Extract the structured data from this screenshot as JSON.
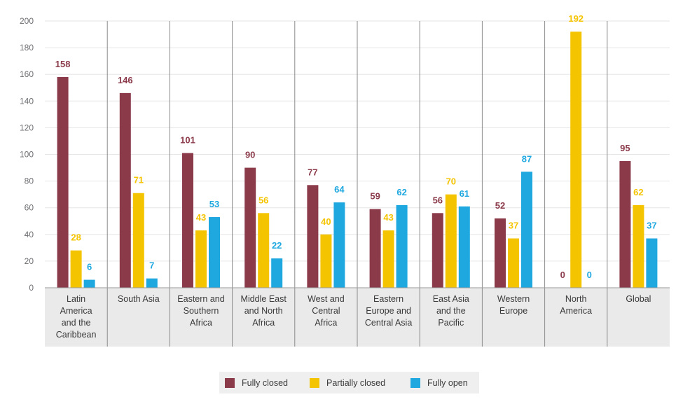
{
  "chart_data": {
    "type": "bar",
    "title": "",
    "xlabel": "",
    "ylabel": "",
    "ylim": [
      0,
      200
    ],
    "yticks": [
      0,
      20,
      40,
      60,
      80,
      100,
      120,
      140,
      160,
      180,
      200
    ],
    "grid": true,
    "legend_position": "bottom-center",
    "categories": [
      [
        "Latin",
        "America",
        "and the",
        "Caribbean"
      ],
      [
        "South Asia"
      ],
      [
        "Eastern and",
        "Southern",
        "Africa"
      ],
      [
        "Middle East",
        "and North",
        "Africa"
      ],
      [
        "West and",
        "Central",
        "Africa"
      ],
      [
        "Eastern",
        "Europe and",
        "Central Asia"
      ],
      [
        "East Asia",
        "and the",
        "Pacific"
      ],
      [
        "Western",
        "Europe"
      ],
      [
        "North",
        "America"
      ],
      [
        "Global"
      ]
    ],
    "series": [
      {
        "name": "Fully closed",
        "color": "#8b3a4a",
        "values": [
          158,
          146,
          101,
          90,
          77,
          59,
          56,
          52,
          0,
          95
        ]
      },
      {
        "name": "Partially closed",
        "color": "#f5c400",
        "values": [
          28,
          71,
          43,
          56,
          40,
          43,
          70,
          37,
          192,
          62
        ]
      },
      {
        "name": "Fully open",
        "color": "#1fa8e0",
        "values": [
          6,
          7,
          53,
          22,
          64,
          62,
          61,
          87,
          0,
          37
        ]
      }
    ]
  }
}
